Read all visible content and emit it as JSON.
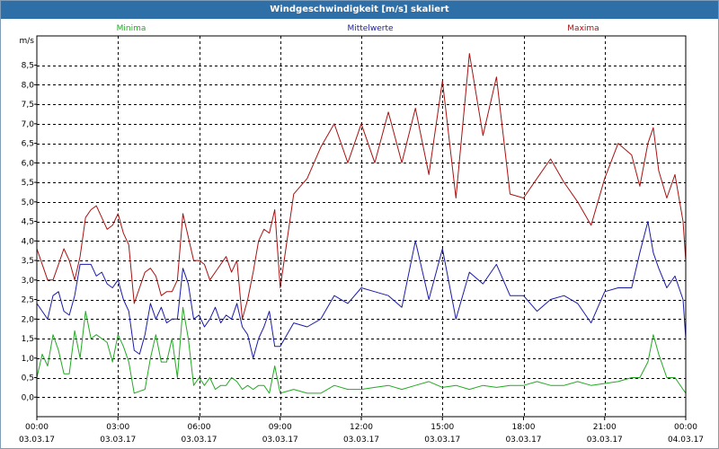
{
  "window": {
    "title": "Windgeschwindigkeit [m/s] skaliert"
  },
  "chart_data": {
    "type": "line",
    "title": "Windgeschwindigkeit [m/s] skaliert",
    "ylabel": "m/s",
    "xlabel": "",
    "ylim": [
      -0.5,
      9.25
    ],
    "xlim": [
      0,
      24
    ],
    "y_ticks": [
      "0,0",
      "0,5",
      "1,0",
      "1,5",
      "2,0",
      "2,5",
      "3,0",
      "3,5",
      "4,0",
      "4,5",
      "5,0",
      "5,5",
      "6,0",
      "6,5",
      "7,0",
      "7,5",
      "8,0",
      "8,5"
    ],
    "y_tick_values": [
      0,
      0.5,
      1,
      1.5,
      2,
      2.5,
      3,
      3.5,
      4,
      4.5,
      5,
      5.5,
      6,
      6.5,
      7,
      7.5,
      8,
      8.5
    ],
    "x_ticks": [
      {
        "time": "00:00",
        "date": "03.03.17",
        "h": 0
      },
      {
        "time": "03:00",
        "date": "03.03.17",
        "h": 3
      },
      {
        "time": "06:00",
        "date": "03.03.17",
        "h": 6
      },
      {
        "time": "09:00",
        "date": "03.03.17",
        "h": 9
      },
      {
        "time": "12:00",
        "date": "03.03.17",
        "h": 12
      },
      {
        "time": "15:00",
        "date": "03.03.17",
        "h": 15
      },
      {
        "time": "18:00",
        "date": "03.03.17",
        "h": 18
      },
      {
        "time": "21:00",
        "date": "03.03.17",
        "h": 21
      },
      {
        "time": "00:00",
        "date": "04.03.17",
        "h": 24
      }
    ],
    "grid": true,
    "series": [
      {
        "name": "Minima",
        "color": "#22aa22",
        "legend_pos": "left",
        "x": [
          0,
          0.2,
          0.4,
          0.6,
          0.8,
          1.0,
          1.2,
          1.4,
          1.6,
          1.8,
          2.0,
          2.2,
          2.4,
          2.6,
          2.8,
          3.0,
          3.2,
          3.4,
          3.6,
          3.8,
          4.0,
          4.2,
          4.4,
          4.6,
          4.8,
          5.0,
          5.2,
          5.4,
          5.6,
          5.8,
          6.0,
          6.2,
          6.4,
          6.6,
          6.8,
          7.0,
          7.2,
          7.4,
          7.6,
          7.8,
          8.0,
          8.2,
          8.4,
          8.6,
          8.8,
          9.0,
          9.5,
          10,
          10.5,
          11,
          11.5,
          12,
          12.5,
          13,
          13.5,
          14,
          14.5,
          15,
          15.5,
          16,
          16.5,
          17,
          17.5,
          18,
          18.5,
          19,
          19.5,
          20,
          20.5,
          21,
          21.5,
          22,
          22.3,
          22.6,
          22.8,
          23.0,
          23.3,
          23.6,
          23.9,
          24.0
        ],
        "values": [
          0.5,
          1.1,
          0.8,
          1.6,
          1.2,
          0.6,
          0.6,
          1.7,
          1.0,
          2.2,
          1.5,
          1.6,
          1.5,
          1.4,
          0.9,
          1.6,
          1.3,
          0.9,
          0.1,
          0.15,
          0.2,
          1.0,
          1.6,
          0.9,
          0.9,
          1.5,
          0.5,
          2.3,
          1.5,
          0.3,
          0.5,
          0.3,
          0.5,
          0.2,
          0.3,
          0.3,
          0.5,
          0.4,
          0.2,
          0.3,
          0.2,
          0.3,
          0.3,
          0.1,
          0.8,
          0.1,
          0.2,
          0.1,
          0.1,
          0.3,
          0.2,
          0.2,
          0.25,
          0.3,
          0.2,
          0.3,
          0.4,
          0.25,
          0.3,
          0.2,
          0.3,
          0.25,
          0.3,
          0.3,
          0.4,
          0.3,
          0.3,
          0.4,
          0.3,
          0.35,
          0.4,
          0.5,
          0.5,
          0.9,
          1.6,
          1.1,
          0.5,
          0.5,
          0.2,
          0.1
        ]
      },
      {
        "name": "Mittelwerte",
        "color": "#1a1aaa",
        "legend_pos": "center",
        "x": [
          0,
          0.2,
          0.4,
          0.6,
          0.8,
          1.0,
          1.2,
          1.4,
          1.6,
          1.8,
          2.0,
          2.2,
          2.4,
          2.6,
          2.8,
          3.0,
          3.2,
          3.4,
          3.6,
          3.8,
          4.0,
          4.2,
          4.4,
          4.6,
          4.8,
          5.0,
          5.2,
          5.4,
          5.6,
          5.8,
          6.0,
          6.2,
          6.4,
          6.6,
          6.8,
          7.0,
          7.2,
          7.4,
          7.6,
          7.8,
          8.0,
          8.2,
          8.4,
          8.6,
          8.8,
          9.0,
          9.5,
          10,
          10.5,
          11,
          11.5,
          12,
          12.5,
          13,
          13.5,
          14,
          14.5,
          15,
          15.5,
          16,
          16.5,
          17,
          17.5,
          18,
          18.5,
          19,
          19.5,
          20,
          20.5,
          21,
          21.5,
          22,
          22.3,
          22.6,
          22.8,
          23.0,
          23.3,
          23.6,
          23.9,
          24.0
        ],
        "values": [
          2.4,
          2.2,
          2.0,
          2.6,
          2.7,
          2.2,
          2.1,
          2.6,
          3.4,
          3.4,
          3.4,
          3.1,
          3.2,
          2.9,
          2.8,
          3.0,
          2.5,
          2.2,
          1.2,
          1.1,
          1.6,
          2.4,
          2.0,
          2.3,
          1.9,
          2.0,
          2.0,
          3.3,
          2.9,
          2.0,
          2.1,
          1.8,
          2.0,
          2.3,
          1.9,
          2.1,
          2.0,
          2.4,
          1.8,
          1.6,
          1.0,
          1.5,
          1.8,
          2.2,
          1.3,
          1.3,
          1.9,
          1.8,
          2.0,
          2.6,
          2.4,
          2.8,
          2.7,
          2.6,
          2.3,
          4.0,
          2.5,
          3.8,
          2.0,
          3.2,
          2.9,
          3.4,
          2.6,
          2.6,
          2.2,
          2.5,
          2.6,
          2.4,
          1.9,
          2.7,
          2.8,
          2.8,
          3.7,
          4.5,
          3.7,
          3.3,
          2.8,
          3.1,
          2.5,
          1.5
        ]
      },
      {
        "name": "Maxima",
        "color": "#aa1111",
        "legend_pos": "right",
        "x": [
          0,
          0.2,
          0.4,
          0.6,
          0.8,
          1.0,
          1.2,
          1.4,
          1.6,
          1.8,
          2.0,
          2.2,
          2.4,
          2.6,
          2.8,
          3.0,
          3.2,
          3.4,
          3.6,
          3.8,
          4.0,
          4.2,
          4.4,
          4.6,
          4.8,
          5.0,
          5.2,
          5.4,
          5.6,
          5.8,
          6.0,
          6.2,
          6.4,
          6.6,
          6.8,
          7.0,
          7.2,
          7.4,
          7.6,
          7.8,
          8.0,
          8.2,
          8.4,
          8.6,
          8.8,
          9.0,
          9.5,
          10,
          10.5,
          11,
          11.5,
          12,
          12.5,
          13,
          13.5,
          14,
          14.5,
          15,
          15.5,
          16,
          16.5,
          17,
          17.5,
          18,
          18.5,
          19,
          19.5,
          20,
          20.5,
          21,
          21.5,
          22,
          22.3,
          22.6,
          22.8,
          23.0,
          23.3,
          23.6,
          23.9,
          24.0
        ],
        "values": [
          3.8,
          3.4,
          3.0,
          3.0,
          3.4,
          3.8,
          3.5,
          3.0,
          3.6,
          4.6,
          4.8,
          4.9,
          4.6,
          4.3,
          4.4,
          4.7,
          4.2,
          3.9,
          2.4,
          2.8,
          3.2,
          3.3,
          3.1,
          2.6,
          2.7,
          2.7,
          3.0,
          4.7,
          4.1,
          3.5,
          3.5,
          3.4,
          3.0,
          3.2,
          3.4,
          3.6,
          3.2,
          3.5,
          2.0,
          2.5,
          3.2,
          4.0,
          4.3,
          4.2,
          4.8,
          2.8,
          5.2,
          5.6,
          6.4,
          7.0,
          6.0,
          7.0,
          6.0,
          7.3,
          6.0,
          7.4,
          5.7,
          8.1,
          5.1,
          8.8,
          6.7,
          8.2,
          5.2,
          5.1,
          5.6,
          6.1,
          5.5,
          5.0,
          4.4,
          5.6,
          6.5,
          6.2,
          5.4,
          6.5,
          6.9,
          5.8,
          5.1,
          5.7,
          4.5,
          3.5
        ]
      }
    ]
  }
}
